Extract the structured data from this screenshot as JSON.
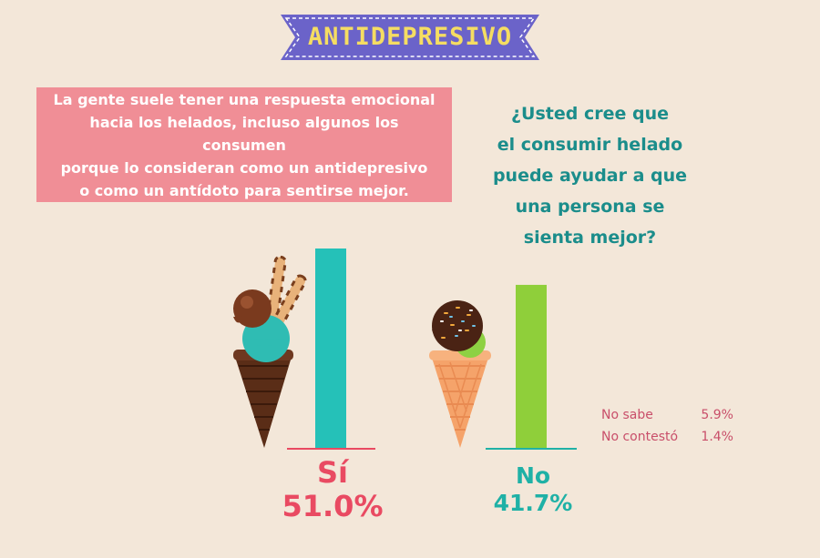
{
  "title": "ANTIDEPRESIVO",
  "description": [
    "La gente suele tener una respuesta emocional",
    "hacia los helados, incluso algunos los consumen",
    "porque lo consideran como un antidepresivo",
    "o como un antídoto para sentirse mejor."
  ],
  "question": [
    "¿Usted cree que",
    "el consumir helado",
    "puede ayudar a que",
    "una persona se",
    "sienta mejor?"
  ],
  "legend": [
    {
      "label": "No sabe",
      "value": "5.9%"
    },
    {
      "label": "No contestó",
      "value": "1.4%"
    }
  ],
  "colors": {
    "background": "#f3e7d9",
    "banner": "#6b63c9",
    "banner_text": "#f5dd62",
    "box": "#f08e96",
    "si_bar": "#25c1b8",
    "no_bar": "#8fcf3a",
    "si_text": "#e94a62",
    "no_text": "#1fb1a6",
    "legend_text": "#c94f6a"
  },
  "chart_data": {
    "type": "bar",
    "categories": [
      "Sí",
      "No"
    ],
    "values": [
      51.0,
      41.7
    ],
    "value_labels": [
      "51.0%",
      "41.7%"
    ],
    "extra": [
      {
        "label": "No sabe",
        "value": 5.9
      },
      {
        "label": "No contestó",
        "value": 1.4
      }
    ],
    "ylim": [
      0,
      51.0
    ]
  },
  "icons": [
    "chocolate-ice-cream-cone-icon",
    "wafer-stick-icon",
    "mint-chocolate-ice-cream-cone-icon"
  ]
}
